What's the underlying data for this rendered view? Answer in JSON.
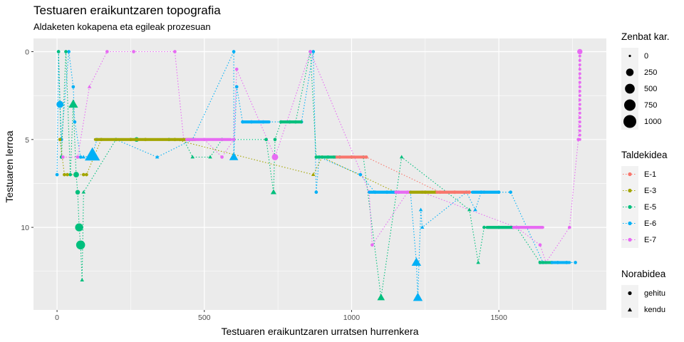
{
  "chart_data": {
    "type": "scatter",
    "title": "Testuaren eraikuntzaren topografia",
    "subtitle": "Aldaketen kokapena eta egileak prozesuan",
    "xlabel": "Testuaren eraikuntzaren urratsen hurrenkera",
    "ylabel": "Testuaren lerroa",
    "xlim": [
      -80,
      1865
    ],
    "ylim": [
      14.7,
      -0.75
    ],
    "y_reversed": true,
    "x_ticks": [
      0,
      500,
      1000,
      1500
    ],
    "y_ticks": [
      0,
      5,
      10
    ],
    "grid": true,
    "legend_size": {
      "title": "Zenbat kar.",
      "entries": [
        {
          "label": "0",
          "value": 0
        },
        {
          "label": "250",
          "value": 250
        },
        {
          "label": "500",
          "value": 500
        },
        {
          "label": "750",
          "value": 750
        },
        {
          "label": "1000",
          "value": 1000
        }
      ]
    },
    "legend_color": {
      "title": "Taldekidea",
      "entries": [
        {
          "label": "E-1",
          "color": "#F8766D"
        },
        {
          "label": "E-3",
          "color": "#A3A500"
        },
        {
          "label": "E-5",
          "color": "#00BF7D"
        },
        {
          "label": "E-6",
          "color": "#00B0F6"
        },
        {
          "label": "E-7",
          "color": "#E76BF3"
        }
      ]
    },
    "legend_shape": {
      "title": "Norabidea",
      "entries": [
        {
          "label": "gehitu",
          "shape": "circle"
        },
        {
          "label": "kendu",
          "shape": "triangle"
        }
      ]
    },
    "series": [
      {
        "name": "E-6",
        "color": "#00B0F6",
        "points": [
          [
            0,
            7,
            10,
            "gehitu"
          ],
          [
            5,
            0,
            10,
            "gehitu"
          ],
          [
            10,
            3,
            200,
            "gehitu"
          ],
          [
            15,
            5,
            10,
            "gehitu"
          ],
          [
            40,
            0,
            10,
            "gehitu"
          ],
          [
            55,
            2,
            10,
            "gehitu"
          ],
          [
            60,
            4,
            10,
            "gehitu"
          ],
          [
            80,
            6,
            10,
            "gehitu"
          ],
          [
            90,
            6,
            10,
            "kendu"
          ],
          [
            120,
            5.9,
            1000,
            "kendu"
          ],
          [
            135,
            5,
            10,
            "gehitu"
          ],
          [
            200,
            5,
            10,
            "gehitu"
          ],
          [
            340,
            6,
            10,
            "kendu"
          ],
          [
            460,
            5,
            10,
            "gehitu"
          ],
          [
            600,
            0,
            10,
            "gehitu"
          ],
          [
            600,
            6,
            250,
            "kendu"
          ],
          [
            610,
            2,
            10,
            "gehitu"
          ],
          [
            630,
            4,
            10,
            "gehitu"
          ],
          [
            660,
            4,
            10,
            "gehitu"
          ],
          [
            700,
            4,
            10,
            "gehitu"
          ],
          [
            830,
            4,
            10,
            "gehitu"
          ],
          [
            870,
            0,
            10,
            "gehitu"
          ],
          [
            880,
            8,
            10,
            "gehitu"
          ],
          [
            890,
            6,
            10,
            "gehitu"
          ],
          [
            1030,
            7,
            10,
            "gehitu"
          ],
          [
            1080,
            8,
            10,
            "gehitu"
          ],
          [
            1120,
            8,
            10,
            "gehitu"
          ],
          [
            1160,
            8,
            10,
            "gehitu"
          ],
          [
            1200,
            8,
            10,
            "gehitu"
          ],
          [
            1220,
            12,
            300,
            "kendu"
          ],
          [
            1225,
            14,
            300,
            "kendu"
          ],
          [
            1235,
            9,
            10,
            "kendu"
          ],
          [
            1240,
            10,
            10,
            "kendu"
          ],
          [
            1390,
            8,
            10,
            "gehitu"
          ],
          [
            1420,
            9,
            10,
            "kendu"
          ],
          [
            1440,
            8,
            10,
            "gehitu"
          ],
          [
            1500,
            8,
            10,
            "gehitu"
          ],
          [
            1540,
            8,
            10,
            "gehitu"
          ],
          [
            1650,
            12,
            10,
            "gehitu"
          ],
          [
            1700,
            12,
            10,
            "gehitu"
          ],
          [
            1730,
            12,
            10,
            "gehitu"
          ],
          [
            1760,
            12,
            10,
            "gehitu"
          ]
        ]
      },
      {
        "name": "E-5",
        "color": "#00BF7D",
        "points": [
          [
            5,
            0,
            10,
            "gehitu"
          ],
          [
            15,
            6,
            10,
            "gehitu"
          ],
          [
            30,
            0,
            10,
            "gehitu"
          ],
          [
            45,
            7,
            10,
            "gehitu"
          ],
          [
            55,
            3,
            300,
            "kendu"
          ],
          [
            65,
            7,
            100,
            "gehitu"
          ],
          [
            70,
            8,
            50,
            "gehitu"
          ],
          [
            75,
            10,
            300,
            "gehitu"
          ],
          [
            80,
            11,
            400,
            "gehitu"
          ],
          [
            85,
            13,
            10,
            "kendu"
          ],
          [
            90,
            8,
            10,
            "kendu"
          ],
          [
            200,
            5,
            10,
            "gehitu"
          ],
          [
            270,
            5,
            50,
            "gehitu"
          ],
          [
            380,
            5,
            10,
            "gehitu"
          ],
          [
            430,
            5,
            10,
            "gehitu"
          ],
          [
            460,
            6,
            10,
            "kendu"
          ],
          [
            520,
            6,
            10,
            "kendu"
          ],
          [
            560,
            5,
            10,
            "gehitu"
          ],
          [
            600,
            5,
            10,
            "gehitu"
          ],
          [
            710,
            5,
            10,
            "gehitu"
          ],
          [
            735,
            8,
            60,
            "kendu"
          ],
          [
            740,
            5,
            10,
            "gehitu"
          ],
          [
            760,
            4,
            10,
            "gehitu"
          ],
          [
            790,
            4,
            10,
            "gehitu"
          ],
          [
            810,
            4,
            10,
            "gehitu"
          ],
          [
            860,
            0,
            10,
            "gehitu"
          ],
          [
            880,
            6,
            10,
            "gehitu"
          ],
          [
            920,
            6,
            10,
            "gehitu"
          ],
          [
            960,
            6,
            10,
            "gehitu"
          ],
          [
            1000,
            6,
            10,
            "gehitu"
          ],
          [
            1040,
            6,
            10,
            "gehitu"
          ],
          [
            1100,
            14,
            150,
            "kendu"
          ],
          [
            1170,
            6,
            10,
            "kendu"
          ],
          [
            1400,
            9,
            10,
            "kendu"
          ],
          [
            1430,
            12,
            10,
            "kendu"
          ],
          [
            1450,
            10,
            10,
            "gehitu"
          ],
          [
            1500,
            10,
            10,
            "gehitu"
          ],
          [
            1560,
            10,
            10,
            "gehitu"
          ],
          [
            1640,
            12,
            10,
            "gehitu"
          ],
          [
            1680,
            12,
            10,
            "gehitu"
          ]
        ]
      },
      {
        "name": "E-3",
        "color": "#A3A500",
        "points": [
          [
            10,
            5,
            10,
            "gehitu"
          ],
          [
            25,
            7,
            10,
            "gehitu"
          ],
          [
            35,
            7,
            10,
            "gehitu"
          ],
          [
            90,
            7,
            10,
            "gehitu"
          ],
          [
            100,
            7,
            10,
            "gehitu"
          ],
          [
            150,
            5,
            10,
            "gehitu"
          ],
          [
            250,
            5,
            10,
            "gehitu"
          ],
          [
            300,
            5,
            10,
            "gehitu"
          ],
          [
            400,
            5,
            10,
            "gehitu"
          ],
          [
            870,
            7,
            10,
            "kendu"
          ],
          [
            900,
            6,
            10,
            "gehitu"
          ],
          [
            1150,
            8,
            10,
            "gehitu"
          ],
          [
            1250,
            8,
            10,
            "gehitu"
          ],
          [
            1350,
            8,
            10,
            "gehitu"
          ]
        ]
      },
      {
        "name": "E-1",
        "color": "#F8766D",
        "points": [
          [
            940,
            6,
            10,
            "gehitu"
          ],
          [
            1000,
            6,
            10,
            "gehitu"
          ],
          [
            1050,
            6,
            10,
            "gehitu"
          ],
          [
            1300,
            8,
            10,
            "gehitu"
          ],
          [
            1350,
            8,
            10,
            "gehitu"
          ],
          [
            1400,
            8,
            10,
            "gehitu"
          ],
          [
            1450,
            8,
            10,
            "gehitu"
          ]
        ]
      },
      {
        "name": "E-7",
        "color": "#E76BF3",
        "points": [
          [
            20,
            6,
            10,
            "gehitu"
          ],
          [
            70,
            6,
            10,
            "gehitu"
          ],
          [
            110,
            2,
            10,
            "kendu"
          ],
          [
            170,
            0,
            10,
            "gehitu"
          ],
          [
            260,
            0,
            10,
            "gehitu"
          ],
          [
            400,
            0,
            10,
            "gehitu"
          ],
          [
            430,
            5,
            10,
            "gehitu"
          ],
          [
            500,
            5,
            10,
            "gehitu"
          ],
          [
            560,
            6,
            10,
            "gehitu"
          ],
          [
            600,
            5,
            10,
            "gehitu"
          ],
          [
            610,
            1,
            10,
            "gehitu"
          ],
          [
            740,
            6,
            150,
            "gehitu"
          ],
          [
            860,
            0,
            10,
            "gehitu"
          ],
          [
            1060,
            8,
            10,
            "gehitu"
          ],
          [
            1070,
            11,
            10,
            "gehitu"
          ],
          [
            1190,
            8,
            10,
            "gehitu"
          ],
          [
            1240,
            8,
            10,
            "gehitu"
          ],
          [
            1560,
            10,
            10,
            "gehitu"
          ],
          [
            1640,
            11,
            10,
            "gehitu"
          ],
          [
            1660,
            12,
            10,
            "gehitu"
          ],
          [
            1740,
            10,
            10,
            "gehitu"
          ],
          [
            1770,
            5,
            10,
            "gehitu"
          ],
          [
            1775,
            0,
            80,
            "gehitu"
          ]
        ]
      }
    ]
  }
}
